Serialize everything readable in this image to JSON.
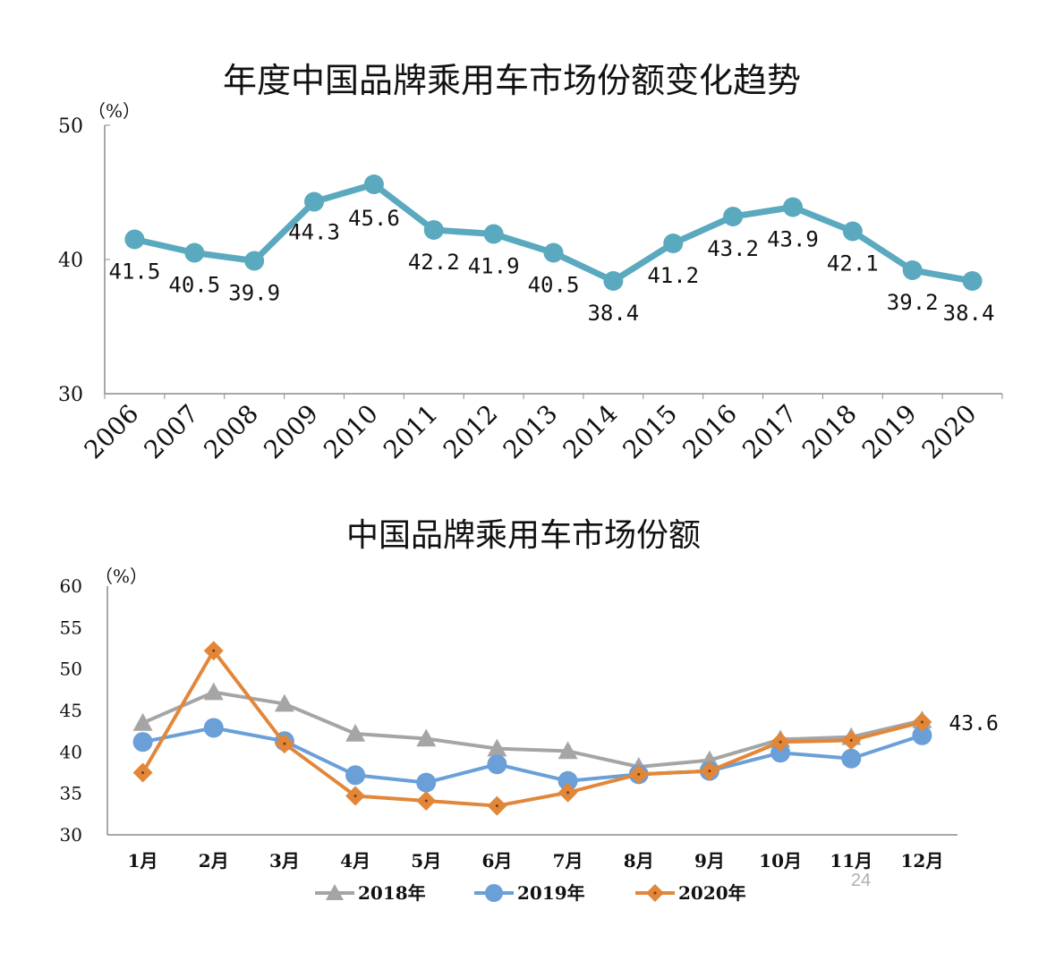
{
  "page_number": "24",
  "colors": {
    "annual_line": "#5aa9bf",
    "s2018": "#a5a5a5",
    "s2019": "#6a9fd8",
    "s2020": "#e2873a",
    "axis": "#8c8c8c"
  },
  "chart_data": [
    {
      "type": "line",
      "title": "年度中国品牌乘用车市场份额变化趋势",
      "ylabel": "（%）",
      "categories": [
        "2006",
        "2007",
        "2008",
        "2009",
        "2010",
        "2011",
        "2012",
        "2013",
        "2014",
        "2015",
        "2016",
        "2017",
        "2018",
        "2019",
        "2020"
      ],
      "values": [
        41.5,
        40.5,
        39.9,
        44.3,
        45.6,
        42.2,
        41.9,
        40.5,
        38.4,
        41.2,
        43.2,
        43.9,
        42.1,
        39.2,
        38.4
      ],
      "value_labels": [
        "41.5",
        "40.5",
        "39.9",
        "44.3",
        "45.6",
        "42.2",
        "41.9",
        "40.5",
        "38.4",
        "41.2",
        "43.2",
        "43.9",
        "42.1",
        "39.2",
        "38.4"
      ],
      "ylim": [
        30,
        50
      ],
      "yticks": [
        "30",
        "40",
        "50"
      ],
      "grid": false,
      "legend": "none"
    },
    {
      "type": "line",
      "title": "中国品牌乘用车市场份额",
      "ylabel": "（%）",
      "categories": [
        "1月",
        "2月",
        "3月",
        "4月",
        "5月",
        "6月",
        "7月",
        "8月",
        "9月",
        "10月",
        "11月",
        "12月"
      ],
      "series": [
        {
          "name": "2018年",
          "marker": "triangle",
          "values": [
            43.5,
            47.2,
            45.8,
            42.2,
            41.6,
            40.4,
            40.1,
            38.2,
            39.0,
            41.5,
            41.8,
            43.8
          ]
        },
        {
          "name": "2019年",
          "marker": "circle",
          "values": [
            41.2,
            42.9,
            41.3,
            37.2,
            36.3,
            38.5,
            36.5,
            37.3,
            37.7,
            39.9,
            39.2,
            42.0
          ]
        },
        {
          "name": "2020年",
          "marker": "diamond",
          "values": [
            37.5,
            52.2,
            41.0,
            34.7,
            34.1,
            33.5,
            35.1,
            37.3,
            37.7,
            41.2,
            41.4,
            43.6
          ]
        }
      ],
      "end_label": "43.6",
      "ylim": [
        30,
        60
      ],
      "yticks": [
        "30",
        "35",
        "40",
        "45",
        "50",
        "55",
        "60"
      ],
      "grid": false,
      "legend": "bottom"
    }
  ]
}
